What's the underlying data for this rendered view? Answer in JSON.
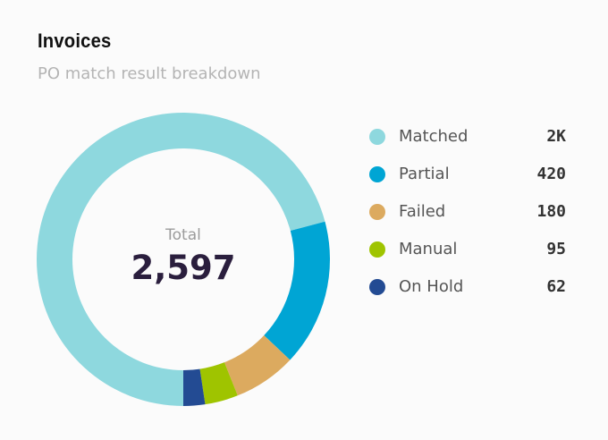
{
  "header": {
    "title": "Invoices",
    "subtitle": "PO match result breakdown"
  },
  "center": {
    "label": "Total",
    "value": "2,597"
  },
  "legend": [
    {
      "label": "Matched",
      "value": "2K",
      "color": "#8ed8de"
    },
    {
      "label": "Partial",
      "value": "420",
      "color": "#00a5d4"
    },
    {
      "label": "Failed",
      "value": "180",
      "color": "#dcaa5f"
    },
    {
      "label": "Manual",
      "value": "95",
      "color": "#9fc400"
    },
    {
      "label": "On Hold",
      "value": "62",
      "color": "#234b93"
    }
  ],
  "chart_data": {
    "type": "pie",
    "style": "donut",
    "title": "Invoices",
    "subtitle": "PO match result breakdown",
    "total": 2597,
    "categories": [
      "Matched",
      "Partial",
      "Failed",
      "Manual",
      "On Hold"
    ],
    "values": [
      1840,
      420,
      180,
      95,
      62
    ],
    "colors": [
      "#8ed8de",
      "#00a5d4",
      "#dcaa5f",
      "#9fc400",
      "#234b93"
    ],
    "legend_position": "right"
  }
}
